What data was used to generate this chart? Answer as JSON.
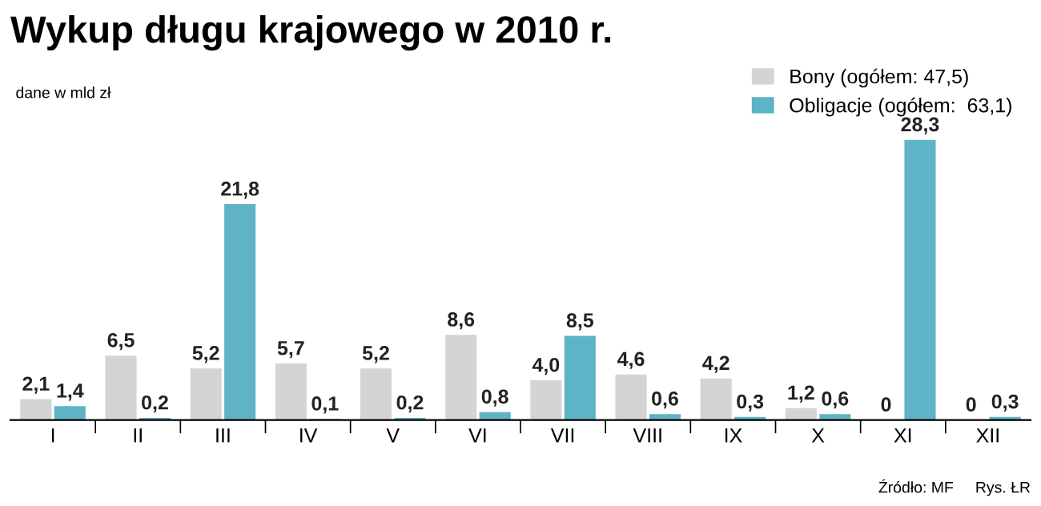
{
  "chart_data": {
    "type": "bar",
    "title": "Wykup długu krajowego w 2010 r.",
    "categories": [
      "I",
      "II",
      "III",
      "IV",
      "V",
      "VI",
      "VII",
      "VIII",
      "IX",
      "X",
      "XI",
      "XII"
    ],
    "series": [
      {
        "name": "Bony (ogółem: 47,5)",
        "color": "#d4d4d4",
        "values": [
          2.1,
          6.5,
          5.2,
          5.7,
          5.2,
          8.6,
          4.0,
          4.6,
          4.2,
          1.2,
          0,
          0
        ],
        "value_labels": [
          "2,1",
          "6,5",
          "5,2",
          "5,7",
          "5,2",
          "8,6",
          "4,0",
          "4,6",
          "4,2",
          "1,2",
          "0",
          "0"
        ]
      },
      {
        "name": "Obligacje (ogółem:  63,1)",
        "color": "#5eb3c6",
        "values": [
          1.4,
          0.2,
          21.8,
          0.1,
          0.2,
          0.8,
          8.5,
          0.6,
          0.3,
          0.6,
          28.3,
          0.3
        ],
        "value_labels": [
          "1,4",
          "0,2",
          "21,8",
          "0,1",
          "0,2",
          "0,8",
          "8,5",
          "0,6",
          "0,3",
          "0,6",
          "28,3",
          "0,3"
        ]
      }
    ],
    "legend": "top right",
    "grid": false,
    "annotations": [
      "dane w mld zł",
      "Źródło: MF     Rys. ŁR"
    ]
  }
}
